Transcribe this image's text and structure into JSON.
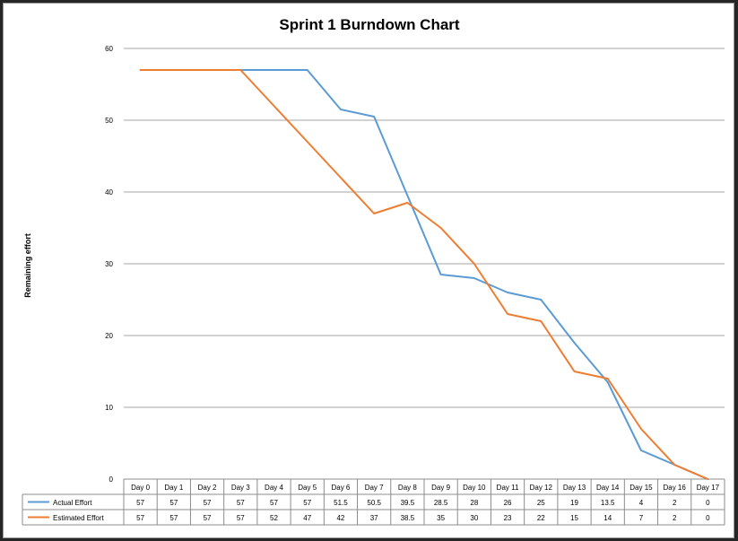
{
  "chart_data": {
    "type": "line",
    "title": "Sprint 1 Burndown Chart",
    "xlabel": "",
    "ylabel": "Remaining effort",
    "ylim": [
      0,
      60
    ],
    "yticks": [
      0,
      10,
      20,
      30,
      40,
      50,
      60
    ],
    "grid": true,
    "legend": "data table below plot",
    "categories": [
      "Day 0",
      "Day 1",
      "Day 2",
      "Day 3",
      "Day 4",
      "Day 5",
      "Day 6",
      "Day 7",
      "Day 8",
      "Day 9",
      "Day 10",
      "Day 11",
      "Day 12",
      "Day 13",
      "Day 14",
      "Day 15",
      "Day 16",
      "Day 17"
    ],
    "series": [
      {
        "name": "Actual Effort",
        "color": "#5b9bd5",
        "values": [
          57,
          57,
          57,
          57,
          57,
          57,
          51.5,
          50.5,
          39.5,
          28.5,
          28,
          26,
          25,
          19,
          13.5,
          4,
          2,
          0
        ]
      },
      {
        "name": "Estimated Effort",
        "color": "#ed7d31",
        "values": [
          57,
          57,
          57,
          57,
          52,
          47,
          42,
          37,
          38.5,
          35,
          30,
          23,
          22,
          15,
          14,
          7,
          2,
          0
        ]
      }
    ]
  }
}
